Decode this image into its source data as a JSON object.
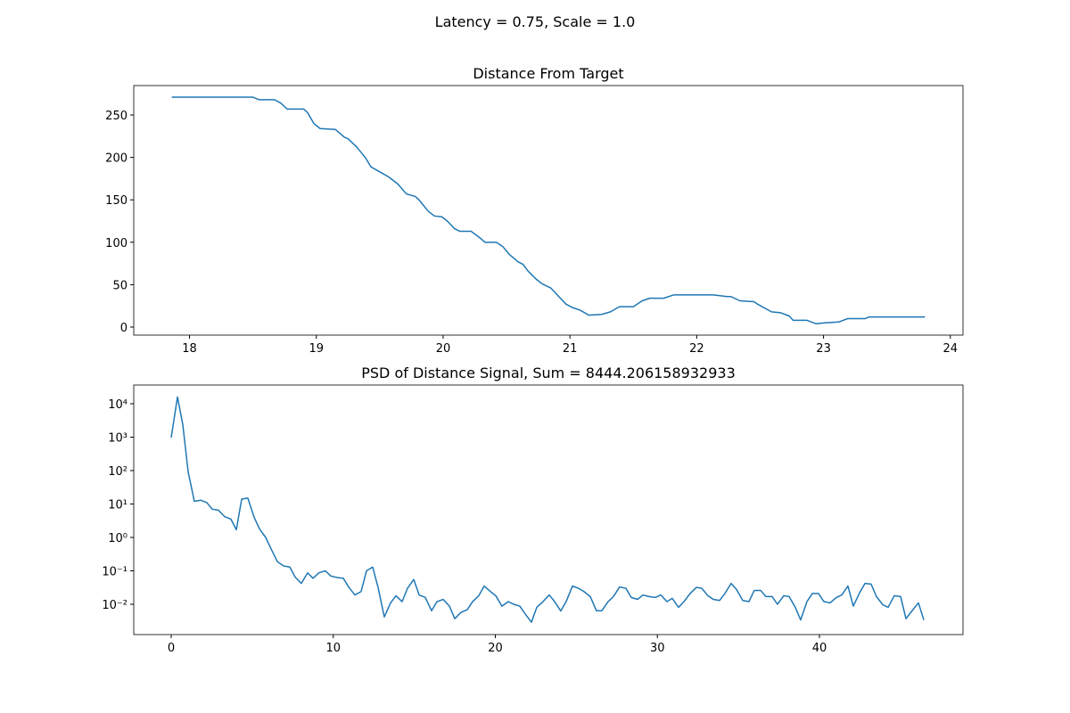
{
  "title": "Latency = 0.75, Scale = 1.0",
  "chart_data": [
    {
      "type": "line",
      "title": "Distance From Target",
      "color": "#1f77b4",
      "x": [
        17.86,
        18.5,
        18.55,
        18.67,
        18.72,
        18.77,
        18.9,
        18.93,
        18.98,
        19.03,
        19.15,
        19.22,
        19.25,
        19.32,
        19.39,
        19.43,
        19.5,
        19.57,
        19.64,
        19.67,
        19.71,
        19.78,
        19.81,
        19.88,
        19.93,
        19.99,
        20.04,
        20.09,
        20.13,
        20.22,
        20.3,
        20.33,
        20.42,
        20.47,
        20.52,
        20.59,
        20.63,
        20.67,
        20.73,
        20.78,
        20.85,
        20.9,
        20.97,
        21.02,
        21.08,
        21.15,
        21.25,
        21.32,
        21.39,
        21.5,
        21.57,
        21.63,
        21.74,
        21.82,
        22.13,
        22.24,
        22.27,
        22.34,
        22.45,
        22.48,
        22.59,
        22.66,
        22.73,
        22.76,
        22.87,
        22.94,
        23.01,
        23.12,
        23.19,
        23.33,
        23.36,
        23.8
      ],
      "values": [
        271,
        271,
        268,
        268,
        264,
        257,
        257,
        253,
        240,
        234,
        233,
        224,
        222,
        212,
        199,
        189,
        183,
        177,
        169,
        164,
        157,
        154,
        150,
        137,
        131,
        130,
        124,
        116,
        113,
        113,
        104,
        100,
        100,
        95,
        86,
        77,
        74,
        66,
        57,
        51,
        46,
        38,
        27,
        23,
        20,
        14,
        15,
        18,
        24,
        24,
        31,
        34,
        34,
        38,
        38,
        36,
        36,
        31,
        30,
        27,
        18,
        17,
        13,
        8,
        8,
        4,
        5,
        6,
        10,
        10,
        12,
        12
      ],
      "xlim": [
        17.56,
        24.1
      ],
      "ylim": [
        -9.45,
        284.7
      ],
      "xticks": [
        18,
        19,
        20,
        21,
        22,
        23,
        24
      ],
      "yticks": [
        0,
        50,
        100,
        150,
        200,
        250
      ]
    },
    {
      "type": "line",
      "title": "PSD of Distance Signal, Sum = 8444.206158932933",
      "color": "#1f77b4",
      "log_y": true,
      "x": [
        0,
        0.39,
        0.72,
        1.05,
        1.43,
        1.82,
        2.2,
        2.53,
        2.92,
        3.3,
        3.69,
        4.02,
        4.35,
        4.73,
        5.12,
        5.45,
        5.83,
        6.22,
        6.55,
        6.93,
        7.32,
        7.65,
        8.03,
        8.42,
        8.75,
        9.13,
        9.52,
        9.85,
        10.23,
        10.62,
        10.95,
        11.33,
        11.72,
        12.05,
        12.43,
        12.76,
        13.15,
        13.54,
        13.87,
        14.25,
        14.58,
        14.97,
        15.3,
        15.68,
        16.07,
        16.4,
        16.78,
        17.17,
        17.5,
        17.88,
        18.27,
        18.6,
        18.98,
        19.31,
        19.7,
        20.03,
        20.41,
        20.8,
        21.13,
        21.51,
        21.84,
        22.23,
        22.56,
        22.94,
        23.33,
        23.66,
        24.04,
        24.37,
        24.76,
        25.14,
        25.47,
        25.86,
        26.24,
        26.57,
        26.96,
        27.29,
        27.67,
        28.06,
        28.39,
        28.78,
        29.11,
        29.49,
        29.88,
        30.21,
        30.59,
        30.92,
        31.31,
        31.64,
        32.02,
        32.41,
        32.74,
        33.12,
        33.45,
        33.84,
        34.17,
        34.55,
        34.88,
        35.27,
        35.65,
        35.98,
        36.37,
        36.7,
        37.08,
        37.41,
        37.8,
        38.13,
        38.51,
        38.84,
        39.23,
        39.56,
        39.94,
        40.28,
        40.66,
        41.05,
        41.38,
        41.76,
        42.09,
        42.48,
        42.81,
        43.19,
        43.52,
        43.91,
        44.24,
        44.62,
        45.01,
        45.34,
        45.72,
        46.11,
        46.44
      ],
      "values": [
        970,
        16000,
        2300,
        90,
        12,
        13,
        11,
        7,
        6.5,
        4.2,
        3.5,
        1.7,
        14,
        15,
        4,
        1.8,
        1,
        0.4,
        0.19,
        0.14,
        0.13,
        0.065,
        0.042,
        0.087,
        0.06,
        0.088,
        0.1,
        0.07,
        0.063,
        0.06,
        0.033,
        0.019,
        0.024,
        0.1,
        0.13,
        0.033,
        0.0042,
        0.011,
        0.018,
        0.012,
        0.03,
        0.055,
        0.019,
        0.016,
        0.0064,
        0.012,
        0.014,
        0.0088,
        0.0037,
        0.0057,
        0.0069,
        0.012,
        0.018,
        0.035,
        0.024,
        0.018,
        0.0088,
        0.012,
        0.01,
        0.0088,
        0.0052,
        0.0029,
        0.0081,
        0.012,
        0.019,
        0.012,
        0.0063,
        0.012,
        0.035,
        0.03,
        0.024,
        0.017,
        0.0064,
        0.0064,
        0.012,
        0.017,
        0.033,
        0.03,
        0.016,
        0.014,
        0.019,
        0.017,
        0.016,
        0.019,
        0.012,
        0.015,
        0.0081,
        0.012,
        0.021,
        0.032,
        0.03,
        0.018,
        0.014,
        0.013,
        0.021,
        0.042,
        0.028,
        0.013,
        0.012,
        0.026,
        0.026,
        0.017,
        0.017,
        0.01,
        0.018,
        0.017,
        0.0081,
        0.0034,
        0.012,
        0.021,
        0.021,
        0.012,
        0.011,
        0.016,
        0.019,
        0.035,
        0.0088,
        0.022,
        0.042,
        0.04,
        0.017,
        0.0097,
        0.0081,
        0.018,
        0.017,
        0.0037,
        0.0064,
        0.011,
        0.0034
      ],
      "xlim": [
        -2.31,
        48.86
      ],
      "ylim": [
        0.00124,
        36300
      ],
      "xticks": [
        0,
        10,
        20,
        30,
        40
      ],
      "yticks": [
        {
          "value": 0.01,
          "label": "10⁻²"
        },
        {
          "value": 0.1,
          "label": "10⁻¹"
        },
        {
          "value": 1,
          "label": "10⁰"
        },
        {
          "value": 10,
          "label": "10¹"
        },
        {
          "value": 100,
          "label": "10²"
        },
        {
          "value": 1000,
          "label": "10³"
        },
        {
          "value": 10000,
          "label": "10⁴"
        }
      ]
    }
  ]
}
